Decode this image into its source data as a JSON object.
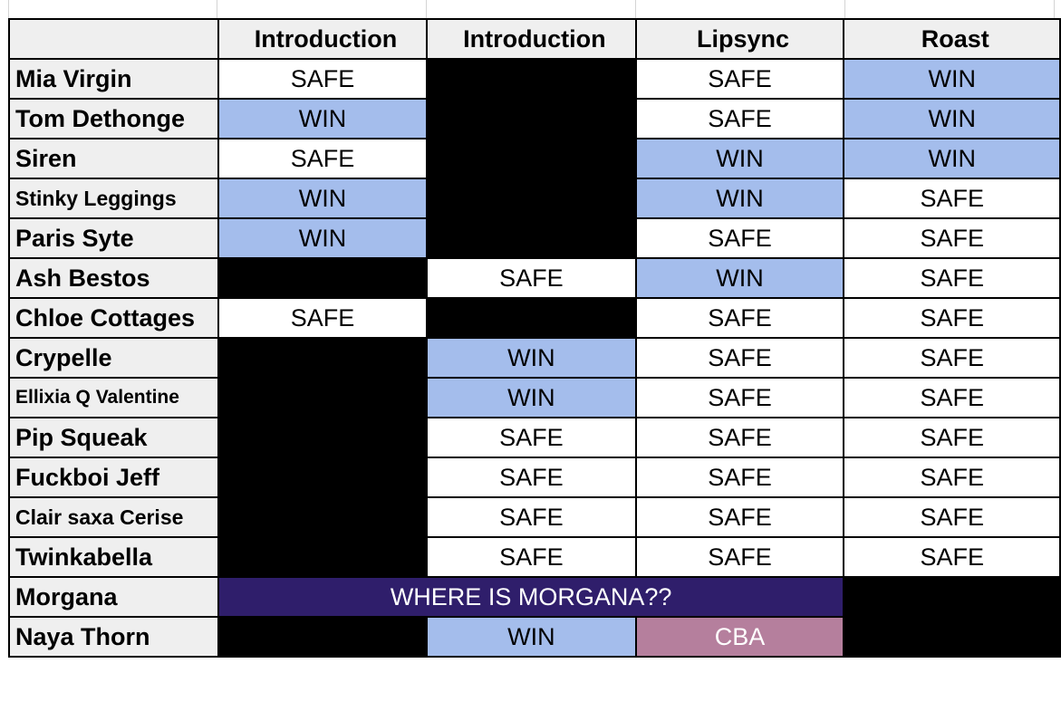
{
  "headers": [
    "Introduction",
    "Introduction",
    "Lipsync",
    "Roast"
  ],
  "rows": [
    {
      "name": "Mia Virgin",
      "cells": [
        {
          "t": "SAFE",
          "s": "safe"
        },
        {
          "t": "",
          "s": "blk"
        },
        {
          "t": "SAFE",
          "s": "safe"
        },
        {
          "t": "WIN",
          "s": "win"
        }
      ]
    },
    {
      "name": "Tom Dethonge",
      "cells": [
        {
          "t": "WIN",
          "s": "win"
        },
        {
          "t": "",
          "s": "blk"
        },
        {
          "t": "SAFE",
          "s": "safe"
        },
        {
          "t": "WIN",
          "s": "win"
        }
      ]
    },
    {
      "name": "Siren",
      "cells": [
        {
          "t": "SAFE",
          "s": "safe"
        },
        {
          "t": "",
          "s": "blk"
        },
        {
          "t": "WIN",
          "s": "win"
        },
        {
          "t": "WIN",
          "s": "win"
        }
      ]
    },
    {
      "name": "Stinky Leggings",
      "cells": [
        {
          "t": "WIN",
          "s": "win"
        },
        {
          "t": "",
          "s": "blk"
        },
        {
          "t": "WIN",
          "s": "win"
        },
        {
          "t": "SAFE",
          "s": "safe"
        }
      ]
    },
    {
      "name": "Paris Syte",
      "cells": [
        {
          "t": "WIN",
          "s": "win"
        },
        {
          "t": "",
          "s": "blk"
        },
        {
          "t": "SAFE",
          "s": "safe"
        },
        {
          "t": "SAFE",
          "s": "safe"
        }
      ]
    },
    {
      "name": "Ash Bestos",
      "cells": [
        {
          "t": "",
          "s": "blk"
        },
        {
          "t": "SAFE",
          "s": "safe"
        },
        {
          "t": "WIN",
          "s": "win"
        },
        {
          "t": "SAFE",
          "s": "safe"
        }
      ]
    },
    {
      "name": "Chloe Cottages",
      "cells": [
        {
          "t": "SAFE",
          "s": "safe"
        },
        {
          "t": "",
          "s": "blk"
        },
        {
          "t": "SAFE",
          "s": "safe"
        },
        {
          "t": "SAFE",
          "s": "safe"
        }
      ]
    },
    {
      "name": "Crypelle",
      "cells": [
        {
          "t": "",
          "s": "blk"
        },
        {
          "t": "WIN",
          "s": "win"
        },
        {
          "t": "SAFE",
          "s": "safe"
        },
        {
          "t": "SAFE",
          "s": "safe"
        }
      ]
    },
    {
      "name": "Ellixia Q Valentine",
      "cells": [
        {
          "t": "",
          "s": "blk"
        },
        {
          "t": "WIN",
          "s": "win"
        },
        {
          "t": "SAFE",
          "s": "safe"
        },
        {
          "t": "SAFE",
          "s": "safe"
        }
      ]
    },
    {
      "name": "Pip Squeak",
      "cells": [
        {
          "t": "",
          "s": "blk"
        },
        {
          "t": "SAFE",
          "s": "safe"
        },
        {
          "t": "SAFE",
          "s": "safe"
        },
        {
          "t": "SAFE",
          "s": "safe"
        }
      ]
    },
    {
      "name": "Fuckboi Jeff",
      "cells": [
        {
          "t": "",
          "s": "blk"
        },
        {
          "t": "SAFE",
          "s": "safe"
        },
        {
          "t": "SAFE",
          "s": "safe"
        },
        {
          "t": "SAFE",
          "s": "safe"
        }
      ]
    },
    {
      "name": "Clair saxa Cerise",
      "cells": [
        {
          "t": "",
          "s": "blk"
        },
        {
          "t": "SAFE",
          "s": "safe"
        },
        {
          "t": "SAFE",
          "s": "safe"
        },
        {
          "t": "SAFE",
          "s": "safe"
        }
      ]
    },
    {
      "name": "Twinkabella",
      "cells": [
        {
          "t": "",
          "s": "blk"
        },
        {
          "t": "SAFE",
          "s": "safe"
        },
        {
          "t": "SAFE",
          "s": "safe"
        },
        {
          "t": "SAFE",
          "s": "safe"
        }
      ]
    }
  ],
  "morgana": {
    "name": "Morgana",
    "text": "WHERE IS MORGANA??"
  },
  "naya": {
    "name": "Naya Thorn",
    "cells": [
      {
        "t": "",
        "s": "blk"
      },
      {
        "t": "WIN",
        "s": "win"
      },
      {
        "t": "CBA",
        "s": "cba"
      }
    ]
  },
  "colors": {
    "win": "#a4bdec",
    "safe": "#ffffff",
    "eliminated": "#000000",
    "cba": "#b57f9d",
    "morgana": "#2f1e6b",
    "header": "#efefef"
  }
}
